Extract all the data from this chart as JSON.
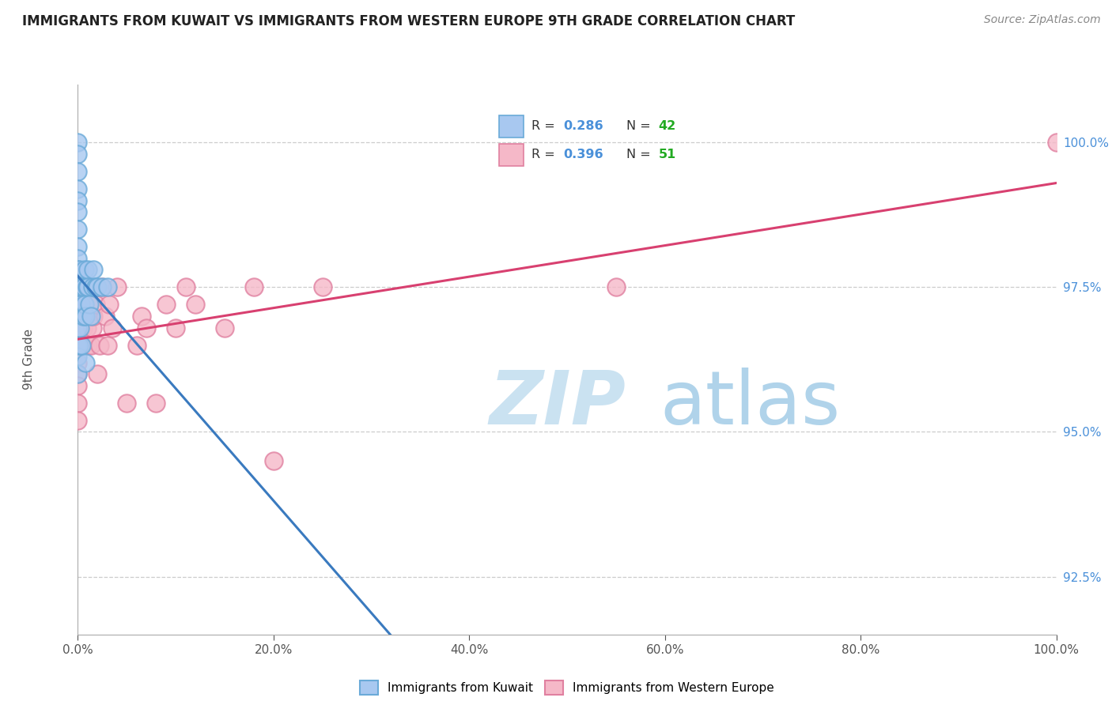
{
  "title": "IMMIGRANTS FROM KUWAIT VS IMMIGRANTS FROM WESTERN EUROPE 9TH GRADE CORRELATION CHART",
  "source": "Source: ZipAtlas.com",
  "ylabel": "9th Grade",
  "legend_label1": "Immigrants from Kuwait",
  "legend_label2": "Immigrants from Western Europe",
  "R_kuwait": 0.286,
  "N_kuwait": 42,
  "R_western": 0.396,
  "N_western": 51,
  "color_kuwait_fill": "#a8c8f0",
  "color_kuwait_edge": "#6aaad8",
  "color_western_fill": "#f5b8c8",
  "color_western_edge": "#e080a0",
  "color_kuwait_line": "#3a7abf",
  "color_western_line": "#d84070",
  "color_r_label": "#555555",
  "color_r_value": "#4a90d9",
  "color_n_value": "#22aa22",
  "watermark_zip_color": "#b8d8ee",
  "watermark_atlas_color": "#90c4e0",
  "xlim": [
    0.0,
    1.0
  ],
  "ylim": [
    91.5,
    101.0
  ],
  "xticks": [
    0.0,
    0.2,
    0.4,
    0.6,
    0.8,
    1.0
  ],
  "xticklabels": [
    "0.0%",
    "20.0%",
    "40.0%",
    "60.0%",
    "80.0%",
    "100.0%"
  ],
  "yticks_right": [
    92.5,
    95.0,
    97.5,
    100.0
  ],
  "yticklabels_right": [
    "92.5%",
    "95.0%",
    "97.5%",
    "100.0%"
  ],
  "kuwait_x": [
    0.0,
    0.0,
    0.0,
    0.0,
    0.0,
    0.0,
    0.0,
    0.0,
    0.0,
    0.0,
    0.0,
    0.0,
    0.0,
    0.0,
    0.0,
    0.0,
    0.0,
    0.0,
    0.001,
    0.001,
    0.002,
    0.002,
    0.003,
    0.004,
    0.004,
    0.005,
    0.006,
    0.007,
    0.007,
    0.008,
    0.009,
    0.01,
    0.01,
    0.012,
    0.013,
    0.015,
    0.016,
    0.018,
    0.02,
    0.025,
    0.03,
    0.008
  ],
  "kuwait_y": [
    100.0,
    99.8,
    99.5,
    99.2,
    99.0,
    98.8,
    98.5,
    98.2,
    98.0,
    97.8,
    97.5,
    97.5,
    97.2,
    97.0,
    96.8,
    96.5,
    96.3,
    96.0,
    97.8,
    96.5,
    97.5,
    96.8,
    97.2,
    97.5,
    96.5,
    97.0,
    97.5,
    97.8,
    97.2,
    97.0,
    97.5,
    97.8,
    97.5,
    97.2,
    97.0,
    97.5,
    97.8,
    97.5,
    97.5,
    97.5,
    97.5,
    96.2
  ],
  "western_x": [
    0.0,
    0.0,
    0.0,
    0.0,
    0.0,
    0.0,
    0.0,
    0.0,
    0.0,
    0.0,
    0.001,
    0.001,
    0.002,
    0.002,
    0.003,
    0.004,
    0.005,
    0.006,
    0.007,
    0.008,
    0.009,
    0.01,
    0.011,
    0.012,
    0.013,
    0.015,
    0.016,
    0.018,
    0.02,
    0.022,
    0.025,
    0.028,
    0.03,
    0.032,
    0.035,
    0.04,
    0.05,
    0.06,
    0.065,
    0.07,
    0.08,
    0.09,
    0.1,
    0.11,
    0.12,
    0.15,
    0.18,
    0.2,
    0.25,
    0.55,
    1.0
  ],
  "western_y": [
    97.5,
    97.2,
    97.0,
    96.8,
    96.5,
    96.2,
    96.0,
    95.8,
    95.5,
    95.2,
    97.0,
    96.5,
    97.2,
    96.8,
    97.0,
    96.5,
    96.8,
    97.2,
    96.5,
    97.0,
    96.8,
    96.5,
    97.2,
    97.0,
    96.5,
    96.8,
    97.0,
    97.2,
    96.0,
    96.5,
    97.5,
    97.0,
    96.5,
    97.2,
    96.8,
    97.5,
    95.5,
    96.5,
    97.0,
    96.8,
    95.5,
    97.2,
    96.8,
    97.5,
    97.2,
    96.8,
    97.5,
    94.5,
    97.5,
    97.5,
    100.0
  ]
}
